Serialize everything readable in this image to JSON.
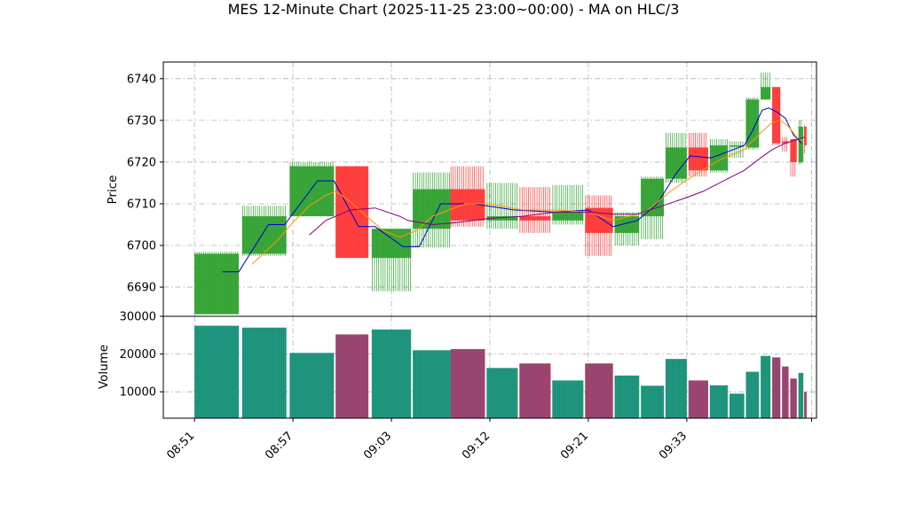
{
  "chart_data": {
    "type": "candlestick",
    "title": "MES 12-Minute Chart (2025-11-25 23:00~00:00) - MA on HLC/3",
    "price_panel": {
      "ylabel": "Price",
      "yticks": [
        6690,
        6700,
        6710,
        6720,
        6730,
        6740
      ],
      "ylim": [
        6683,
        6744
      ],
      "grid": true
    },
    "volume_panel": {
      "ylabel": "Volume",
      "yticks": [
        10000,
        20000,
        30000
      ],
      "ylim": [
        3000,
        30000
      ],
      "grid": true
    },
    "x_tick_labels": [
      "08:51",
      "08:57",
      "09:03",
      "09:12",
      "09:21",
      "09:33"
    ],
    "x_tick_positions": [
      0,
      6,
      12,
      18,
      24,
      30
    ],
    "x_range": [
      -1.9,
      37.9
    ],
    "up_color": "#2ca02c",
    "down_color": "#ff3333",
    "bars": [
      {
        "x0": 0.0,
        "x1": 2.7,
        "open": 6683.5,
        "high": 6698.5,
        "low": 6683.5,
        "close": 6698.0,
        "volume": 27500
      },
      {
        "x0": 2.9,
        "x1": 5.6,
        "open": 6698.0,
        "high": 6709.5,
        "low": 6697.5,
        "close": 6707.0,
        "volume": 27000
      },
      {
        "x0": 5.8,
        "x1": 8.5,
        "open": 6707.0,
        "high": 6720.0,
        "low": 6707.0,
        "close": 6719.0,
        "volume": 20300
      },
      {
        "x0": 8.6,
        "x1": 10.6,
        "open": 6719.0,
        "high": 6719.0,
        "low": 6697.0,
        "close": 6697.0,
        "volume": 25200
      },
      {
        "x0": 10.8,
        "x1": 13.2,
        "open": 6697.0,
        "high": 6704.0,
        "low": 6689.0,
        "close": 6704.0,
        "volume": 26500
      },
      {
        "x0": 13.3,
        "x1": 15.6,
        "open": 6704.0,
        "high": 6717.5,
        "low": 6699.5,
        "close": 6713.5,
        "volume": 21000
      },
      {
        "x0": 15.6,
        "x1": 17.7,
        "open": 6713.5,
        "high": 6719.0,
        "low": 6704.5,
        "close": 6706.0,
        "volume": 21300
      },
      {
        "x0": 17.8,
        "x1": 19.7,
        "open": 6706.0,
        "high": 6715.0,
        "low": 6704.0,
        "close": 6707.0,
        "volume": 16300
      },
      {
        "x0": 19.8,
        "x1": 21.7,
        "open": 6707.0,
        "high": 6714.0,
        "low": 6703.0,
        "close": 6706.0,
        "volume": 17500
      },
      {
        "x0": 21.8,
        "x1": 23.7,
        "open": 6706.0,
        "high": 6714.5,
        "low": 6705.0,
        "close": 6708.0,
        "volume": 13000
      },
      {
        "x0": 23.8,
        "x1": 25.5,
        "open": 6709.0,
        "high": 6712.0,
        "low": 6697.5,
        "close": 6703.0,
        "volume": 17500
      },
      {
        "x0": 25.6,
        "x1": 27.1,
        "open": 6703.0,
        "high": 6708.0,
        "low": 6700.0,
        "close": 6707.0,
        "volume": 14300
      },
      {
        "x0": 27.2,
        "x1": 28.6,
        "open": 6707.0,
        "high": 6716.5,
        "low": 6701.5,
        "close": 6716.0,
        "volume": 11600
      },
      {
        "x0": 28.7,
        "x1": 30.0,
        "open": 6716.0,
        "high": 6727.0,
        "low": 6715.0,
        "close": 6723.5,
        "volume": 18700
      },
      {
        "x0": 30.1,
        "x1": 31.3,
        "open": 6723.5,
        "high": 6727.0,
        "low": 6716.5,
        "close": 6718.0,
        "volume": 13000
      },
      {
        "x0": 31.4,
        "x1": 32.5,
        "open": 6718.0,
        "high": 6725.5,
        "low": 6717.5,
        "close": 6724.0,
        "volume": 11700
      },
      {
        "x0": 32.6,
        "x1": 33.5,
        "open": 6724.0,
        "high": 6725.0,
        "low": 6721.0,
        "close": 6724.0,
        "volume": 9500
      },
      {
        "x0": 33.6,
        "x1": 34.4,
        "open": 6723.5,
        "high": 6735.5,
        "low": 6723.0,
        "close": 6735.0,
        "volume": 15300
      },
      {
        "x0": 34.5,
        "x1": 35.1,
        "open": 6735.0,
        "high": 6741.5,
        "low": 6735.0,
        "close": 6738.0,
        "volume": 19500
      },
      {
        "x0": 35.2,
        "x1": 35.7,
        "open": 6738.0,
        "high": 6738.0,
        "low": 6724.0,
        "close": 6724.5,
        "volume": 19100
      },
      {
        "x0": 35.8,
        "x1": 36.2,
        "open": 6725.0,
        "high": 6726.0,
        "low": 6722.5,
        "close": 6724.5,
        "volume": 16700
      },
      {
        "x0": 36.3,
        "x1": 36.7,
        "open": 6725.5,
        "high": 6725.5,
        "low": 6716.5,
        "close": 6720.0,
        "volume": 13500
      },
      {
        "x0": 36.8,
        "x1": 37.1,
        "open": 6720.0,
        "high": 6730.0,
        "low": 6719.5,
        "close": 6728.5,
        "volume": 15000
      },
      {
        "x0": 37.15,
        "x1": 37.3,
        "open": 6728.5,
        "high": 6729.0,
        "low": 6722.0,
        "close": 6724.0,
        "volume": 10000
      }
    ],
    "ma_series": [
      {
        "color": "#0000cc",
        "points": [
          [
            1.7,
            6693.7
          ],
          [
            2.7,
            6693.7
          ],
          [
            4.5,
            6705.0
          ],
          [
            5.5,
            6705.0
          ],
          [
            7.5,
            6715.5
          ],
          [
            8.5,
            6715.5
          ],
          [
            10.0,
            6704.5
          ],
          [
            11.0,
            6704.5
          ],
          [
            12.7,
            6699.7
          ],
          [
            13.7,
            6699.7
          ],
          [
            15.0,
            6710.0
          ],
          [
            17.0,
            6710.0
          ],
          [
            19.5,
            6708.5
          ],
          [
            22.0,
            6708.0
          ],
          [
            24.0,
            6708.5
          ],
          [
            25.5,
            6704.5
          ],
          [
            27.0,
            6706.0
          ],
          [
            28.2,
            6710.0
          ],
          [
            29.3,
            6717.0
          ],
          [
            30.2,
            6721.5
          ],
          [
            31.5,
            6721.0
          ],
          [
            32.5,
            6722.5
          ],
          [
            33.5,
            6724.0
          ],
          [
            34.0,
            6727.5
          ],
          [
            34.6,
            6732.5
          ],
          [
            35.0,
            6733.0
          ],
          [
            35.5,
            6732.0
          ],
          [
            36.0,
            6730.5
          ],
          [
            36.5,
            6726.5
          ],
          [
            37.0,
            6724.5
          ]
        ]
      },
      {
        "color": "#ff9900",
        "points": [
          [
            3.5,
            6695.5
          ],
          [
            5.0,
            6701.0
          ],
          [
            6.0,
            6705.5
          ],
          [
            7.0,
            6709.5
          ],
          [
            8.0,
            6712.0
          ],
          [
            8.6,
            6713.0
          ],
          [
            9.5,
            6710.5
          ],
          [
            10.5,
            6707.0
          ],
          [
            11.5,
            6703.5
          ],
          [
            12.5,
            6702.0
          ],
          [
            13.5,
            6703.5
          ],
          [
            14.5,
            6707.0
          ],
          [
            15.5,
            6708.5
          ],
          [
            16.5,
            6710.0
          ],
          [
            18.0,
            6710.0
          ],
          [
            20.0,
            6708.5
          ],
          [
            22.0,
            6708.5
          ],
          [
            24.0,
            6708.0
          ],
          [
            25.5,
            6706.0
          ],
          [
            27.5,
            6708.0
          ],
          [
            29.0,
            6713.0
          ],
          [
            30.5,
            6717.0
          ],
          [
            32.0,
            6720.5
          ],
          [
            33.5,
            6723.0
          ],
          [
            34.5,
            6727.0
          ],
          [
            35.2,
            6729.5
          ],
          [
            35.7,
            6730.0
          ],
          [
            36.2,
            6728.5
          ],
          [
            36.7,
            6726.0
          ],
          [
            37.1,
            6725.0
          ]
        ]
      },
      {
        "color": "#800080",
        "points": [
          [
            7.0,
            6702.5
          ],
          [
            8.0,
            6706.0
          ],
          [
            9.5,
            6708.5
          ],
          [
            11.0,
            6709.0
          ],
          [
            12.5,
            6707.0
          ],
          [
            13.0,
            6706.0
          ],
          [
            14.5,
            6705.0
          ],
          [
            16.0,
            6705.5
          ],
          [
            18.0,
            6706.5
          ],
          [
            20.0,
            6707.0
          ],
          [
            22.0,
            6708.0
          ],
          [
            24.0,
            6708.0
          ],
          [
            25.5,
            6707.5
          ],
          [
            27.0,
            6707.5
          ],
          [
            28.5,
            6709.5
          ],
          [
            30.0,
            6711.5
          ],
          [
            31.0,
            6713.0
          ],
          [
            32.5,
            6716.0
          ],
          [
            33.5,
            6718.0
          ],
          [
            34.5,
            6721.0
          ],
          [
            35.2,
            6723.0
          ],
          [
            36.0,
            6724.5
          ],
          [
            36.8,
            6725.5
          ],
          [
            37.2,
            6726.0
          ]
        ]
      }
    ]
  }
}
